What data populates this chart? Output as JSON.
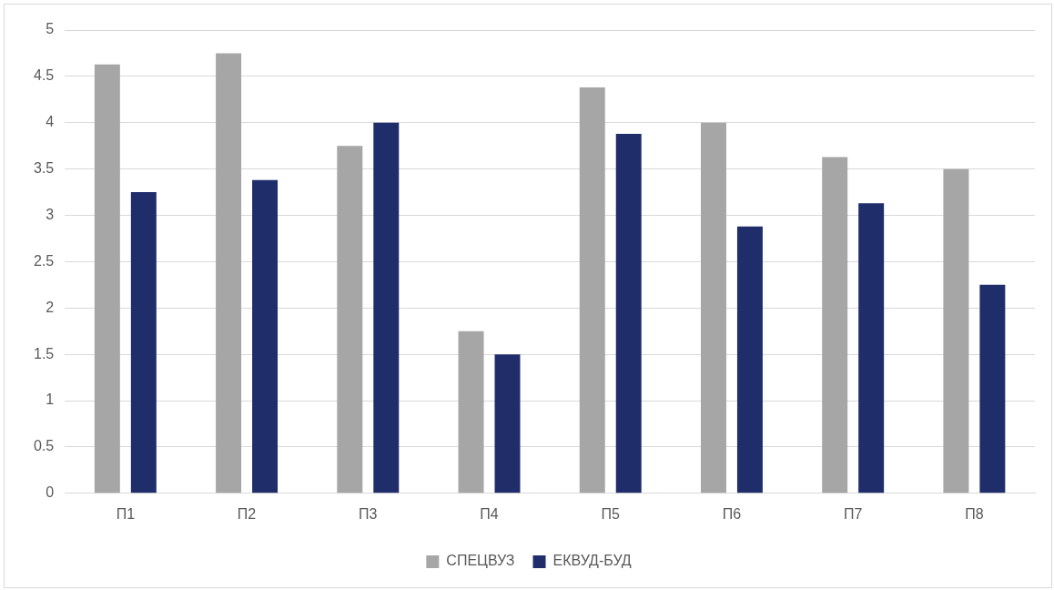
{
  "chart_data": {
    "type": "bar",
    "categories": [
      "П1",
      "П2",
      "П3",
      "П4",
      "П5",
      "П6",
      "П7",
      "П8"
    ],
    "series": [
      {
        "name": "СПЕЦВУЗ",
        "color": "#a6a6a6",
        "values": [
          4.63,
          4.75,
          3.75,
          1.75,
          4.38,
          4,
          3.63,
          3.5
        ]
      },
      {
        "name": "ЕКВУД-БУД",
        "color": "#1f2d6b",
        "values": [
          3.25,
          3.38,
          4,
          1.5,
          3.88,
          2.88,
          3.13,
          2.25
        ]
      }
    ],
    "ylim": [
      0,
      5
    ],
    "yticks": [
      0,
      0.5,
      1,
      1.5,
      2,
      2.5,
      3,
      3.5,
      4,
      4.5,
      5
    ],
    "grid": "y",
    "legend": "bottom"
  }
}
